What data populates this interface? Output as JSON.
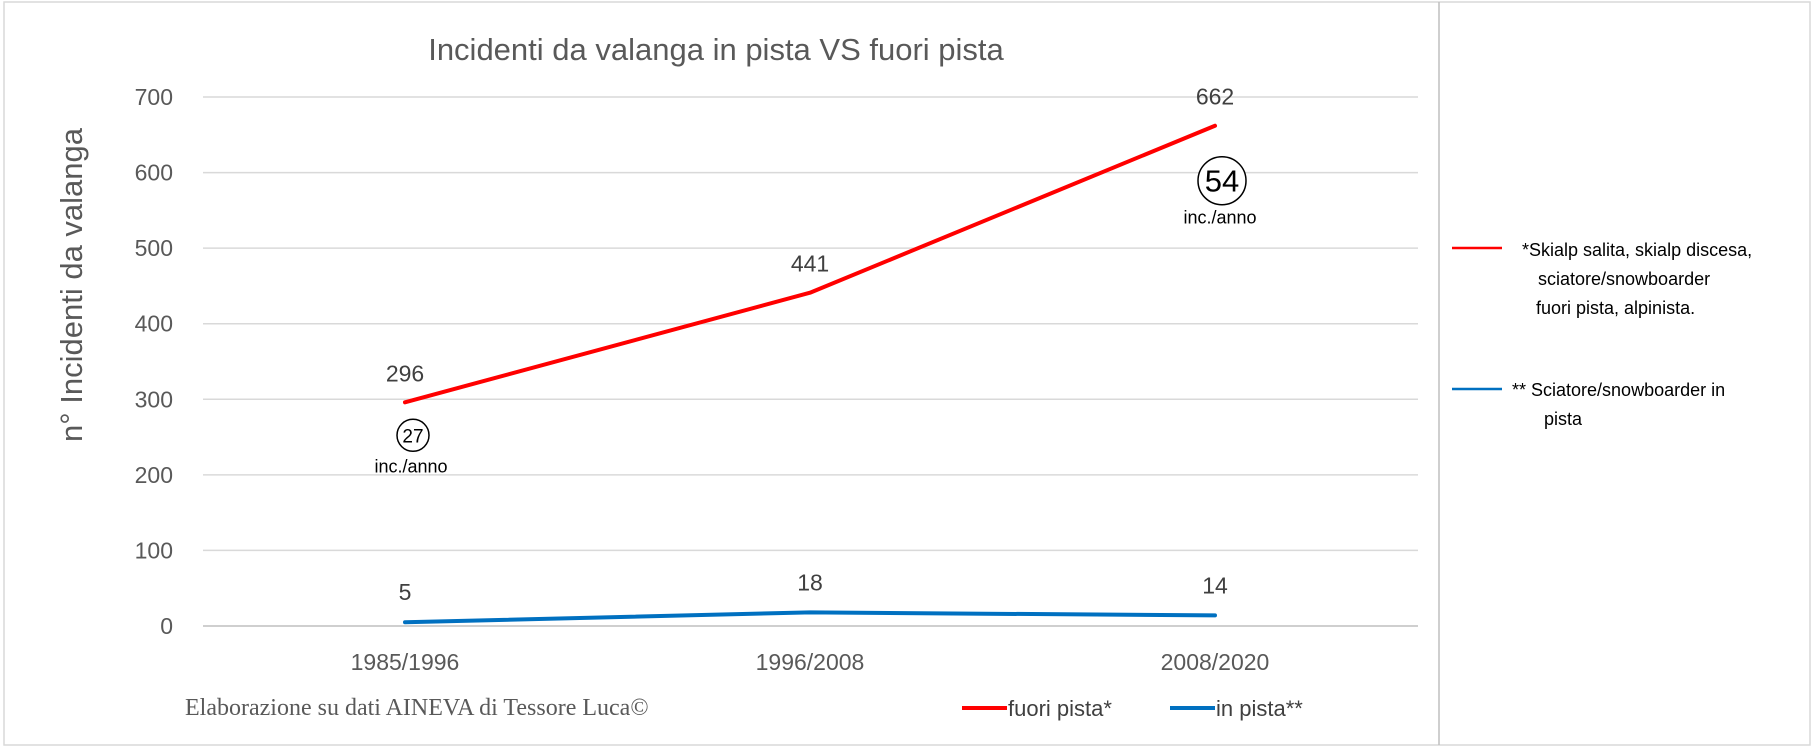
{
  "chart_data": {
    "type": "line",
    "title": "Incidenti da valanga in pista VS fuori pista",
    "ylabel": "n° Incidenti da valanga",
    "xlabel": "",
    "categories": [
      "1985/1996",
      "1996/2008",
      "2008/2020"
    ],
    "ylim": [
      0,
      700
    ],
    "yticks": [
      "0",
      "100",
      "200",
      "300",
      "400",
      "500",
      "600",
      "700"
    ],
    "grid": true,
    "series": [
      {
        "name": "fuori pista*",
        "values": [
          296,
          441,
          662
        ],
        "color": "#ff0000"
      },
      {
        "name": "in pista**",
        "values": [
          5,
          18,
          14
        ],
        "color": "#0070c0"
      }
    ],
    "data_labels": {
      "fuori": [
        "296",
        "441",
        "662"
      ],
      "in": [
        "5",
        "18",
        "14"
      ]
    },
    "annotations": [
      {
        "number": "27",
        "text": "inc./anno",
        "category": "1985/1996",
        "anchor_value": 296
      },
      {
        "number": "54",
        "text": "inc./anno",
        "category": "2008/2020",
        "anchor_value": 662
      }
    ],
    "credit": "Elaborazione su dati AINEVA di Tessore Luca©",
    "legend_placement": "bottom",
    "side_legend": {
      "fuori_lines": [
        "*Skialp salita, skialp discesa,",
        "sciatore/snowboarder",
        "fuori pista, alpinista."
      ],
      "in_lines": [
        "** Sciatore/snowboarder in",
        "pista"
      ]
    }
  }
}
